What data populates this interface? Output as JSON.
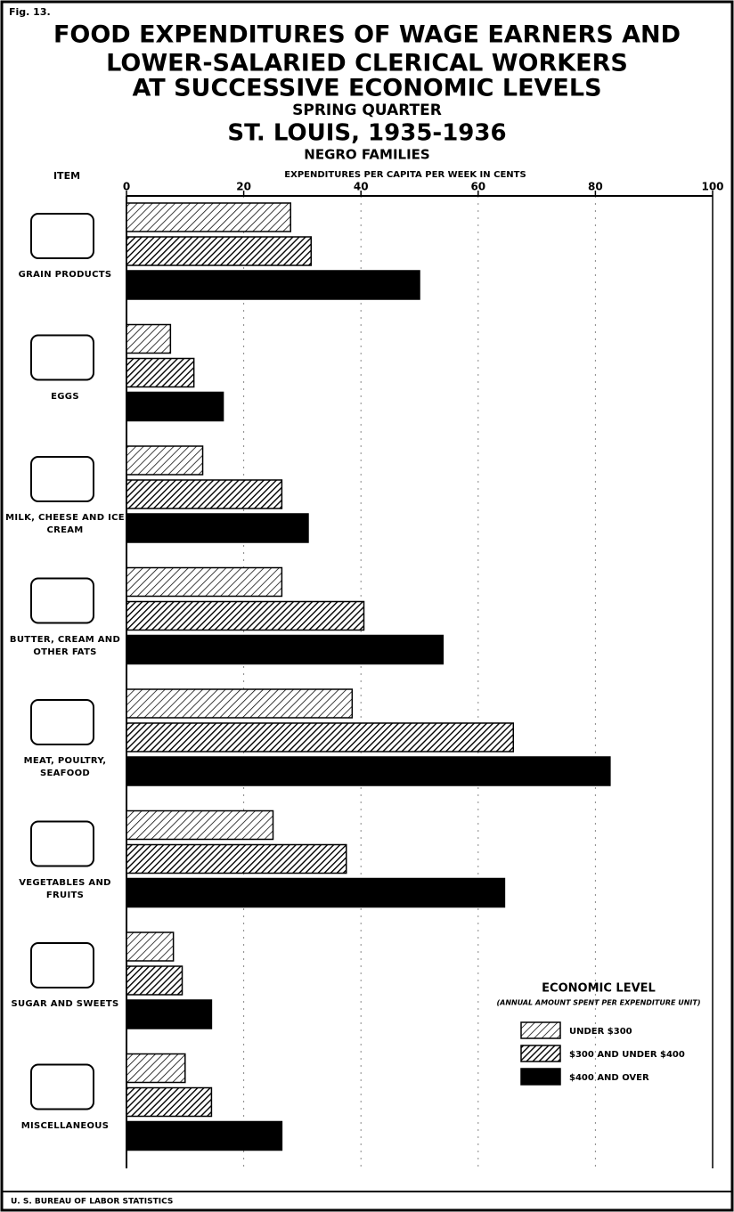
{
  "chart_data": {
    "type": "bar",
    "orientation": "horizontal",
    "figure_label": "Fig. 13.",
    "title": [
      "FOOD EXPENDITURES OF WAGE EARNERS AND",
      "LOWER-SALARIED CLERICAL WORKERS",
      "AT SUCCESSIVE ECONOMIC LEVELS"
    ],
    "subtitle": [
      "SPRING QUARTER",
      "ST. LOUIS, 1935-1936",
      "NEGRO FAMILIES"
    ],
    "category_axis_label": "ITEM",
    "xlabel": "EXPENDITURES PER CAPITA PER WEEK IN CENTS",
    "categories": [
      "GRAIN PRODUCTS",
      "EGGS",
      "MILK, CHEESE AND ICE CREAM",
      "BUTTER, CREAM AND OTHER FATS",
      "MEAT, POULTRY, SEAFOOD",
      "VEGETABLES AND FRUITS",
      "SUGAR AND SWEETS",
      "MISCELLANEOUS"
    ],
    "series": [
      {
        "name": "UNDER $300",
        "color": "#000000",
        "pattern": "light-hatch",
        "values": [
          28,
          7.5,
          13,
          26.5,
          38.5,
          25,
          8,
          10
        ]
      },
      {
        "name": "$300 AND UNDER $400",
        "color": "#000000",
        "pattern": "dense-hatch",
        "values": [
          31.5,
          11.5,
          26.5,
          40.5,
          66,
          37.5,
          9.5,
          14.5
        ]
      },
      {
        "name": "$400 AND OVER",
        "color": "#000000",
        "pattern": "solid",
        "values": [
          50,
          16.5,
          31,
          54,
          82.5,
          64.5,
          14.5,
          26.5
        ]
      }
    ],
    "xlim": [
      0,
      100
    ],
    "xticks": [
      0,
      20,
      40,
      60,
      80,
      100
    ],
    "grid": true,
    "legend_title": "ECONOMIC LEVEL",
    "legend_subtitle": "(ANNUAL AMOUNT SPENT PER EXPENDITURE UNIT)",
    "legend_position": "lower right",
    "source": "U. S. BUREAU OF LABOR STATISTICS"
  }
}
